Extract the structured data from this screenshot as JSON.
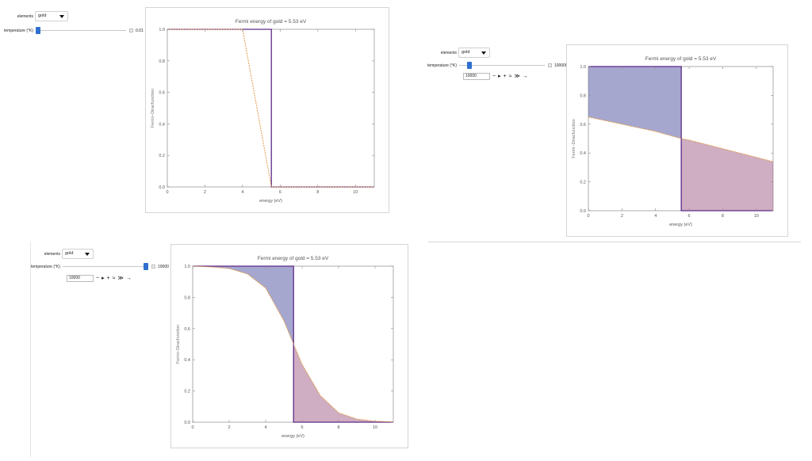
{
  "controls": {
    "elements_label": "elements",
    "element_value": "gold",
    "temperature_label": "temperature (°K)"
  },
  "manipulates": [
    {
      "slider_max": "0.01",
      "slider_fraction": 0.0,
      "show_anim": false,
      "anim_value": "",
      "fermi_fill": false
    },
    {
      "slider_max": "100000",
      "slider_fraction": 0.1,
      "show_anim": true,
      "anim_value": "10000",
      "fermi_fill": true
    },
    {
      "slider_max": "10000",
      "slider_fraction": 1.0,
      "show_anim": true,
      "anim_value": "10000",
      "fermi_fill": true
    }
  ],
  "anim_buttons": [
    "−",
    "▸",
    "+",
    "≈",
    "≫",
    "→"
  ],
  "charts": [
    {
      "title": "Fermi energy of gold = 5.53 eV",
      "xlabel": "energy (eV)",
      "ylabel": "Fermi−Diracfunction",
      "x_ticks": [
        0,
        2,
        4,
        6,
        8,
        10
      ],
      "y_ticks": [
        "0.0",
        "0.2",
        "0.4",
        "0.6",
        "0.8",
        "1.0"
      ]
    }
  ],
  "chart_data": [
    {
      "type": "area",
      "title": "Fermi energy of gold = 5.53 eV",
      "xlabel": "energy (eV)",
      "ylabel": "Fermi−Diracfunction",
      "xlim": [
        0,
        11
      ],
      "ylim": [
        0,
        1
      ],
      "fermi_energy_eV": 5.53,
      "temperature_K": 0.01,
      "series": [
        {
          "x": [
            0,
            5.53,
            5.53,
            11
          ],
          "y": [
            1,
            1,
            0,
            0
          ]
        },
        {
          "x": [
            0,
            2,
            4,
            5.53,
            6,
            8,
            10,
            11
          ],
          "y": [
            1,
            1,
            1,
            0,
            0,
            0,
            0,
            0
          ]
        }
      ]
    },
    {
      "type": "area",
      "title": "Fermi energy of gold = 5.53 eV",
      "xlabel": "energy (eV)",
      "ylabel": "Fermi−Diracfunction",
      "xlim": [
        0,
        11
      ],
      "ylim": [
        0,
        1
      ],
      "fermi_energy_eV": 5.53,
      "temperature_K": 10000,
      "series": [
        {
          "x": [
            0,
            5.53,
            5.53,
            11
          ],
          "y": [
            1,
            1,
            0,
            0
          ]
        },
        {
          "x": [
            0,
            2,
            4,
            5.53,
            6,
            8,
            10,
            11
          ],
          "y": [
            0.65,
            0.6,
            0.55,
            0.5,
            0.49,
            0.43,
            0.37,
            0.34
          ]
        }
      ]
    },
    {
      "type": "area",
      "title": "Fermi energy of gold = 5.53 eV",
      "xlabel": "energy (eV)",
      "ylabel": "Fermi−Diracfunction",
      "xlim": [
        0,
        11
      ],
      "ylim": [
        0,
        1
      ],
      "fermi_energy_eV": 5.53,
      "temperature_K": 10000,
      "series": [
        {
          "x": [
            0,
            5.53,
            5.53,
            11
          ],
          "y": [
            1,
            1,
            0,
            0
          ]
        },
        {
          "x": [
            0,
            1,
            2,
            3,
            4,
            5,
            5.53,
            6,
            7,
            8,
            9,
            10,
            11
          ],
          "y": [
            1.0,
            0.995,
            0.985,
            0.95,
            0.86,
            0.65,
            0.5,
            0.37,
            0.17,
            0.06,
            0.02,
            0.006,
            0.002
          ]
        }
      ]
    }
  ]
}
